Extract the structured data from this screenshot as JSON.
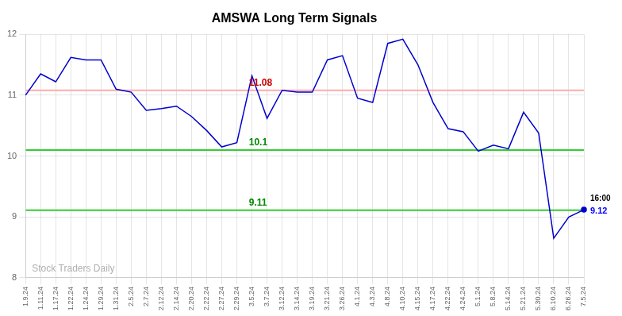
{
  "chart_data": {
    "type": "line",
    "title": "AMSWA Long Term Signals",
    "categories": [
      "1.9.24",
      "1.11.24",
      "1.17.24",
      "1.22.24",
      "1.24.24",
      "1.29.24",
      "1.31.24",
      "2.5.24",
      "2.7.24",
      "2.12.24",
      "2.14.24",
      "2.20.24",
      "2.22.24",
      "2.27.24",
      "2.29.24",
      "3.5.24",
      "3.7.24",
      "3.12.24",
      "3.14.24",
      "3.19.24",
      "3.21.24",
      "3.26.24",
      "4.1.24",
      "4.3.24",
      "4.8.24",
      "4.10.24",
      "4.15.24",
      "4.17.24",
      "4.22.24",
      "4.24.24",
      "5.1.24",
      "5.8.24",
      "5.14.24",
      "5.21.24",
      "5.30.24",
      "6.10.24",
      "6.26.24",
      "7.5.24"
    ],
    "values": [
      11.0,
      11.35,
      11.22,
      11.62,
      11.58,
      11.58,
      11.1,
      11.05,
      10.75,
      10.78,
      10.82,
      10.65,
      10.42,
      10.15,
      10.22,
      11.32,
      10.62,
      11.08,
      11.05,
      11.05,
      11.58,
      11.65,
      10.95,
      10.88,
      11.85,
      11.92,
      11.5,
      10.88,
      10.45,
      10.4,
      10.08,
      10.18,
      10.12,
      10.72,
      10.38,
      8.65,
      9.0,
      9.12
    ],
    "color": "#0000cc",
    "ylim": [
      8,
      12
    ],
    "yticks": [
      8,
      9,
      10,
      11,
      12
    ],
    "grid": true,
    "reference_lines": [
      {
        "value": 11.08,
        "label": "11.08",
        "color": "#ffaaaa",
        "label_color": "#cc0000"
      },
      {
        "value": 10.1,
        "label": "10.1",
        "color": "#33cc33",
        "label_color": "#008800"
      },
      {
        "value": 9.11,
        "label": "9.11",
        "color": "#33cc33",
        "label_color": "#008800"
      }
    ],
    "end_label": {
      "time": "16:00",
      "price": "9.12",
      "color": "#0000ff"
    },
    "watermark": {
      "text": "Stock Traders Daily",
      "color": "#b0b0b0"
    }
  }
}
